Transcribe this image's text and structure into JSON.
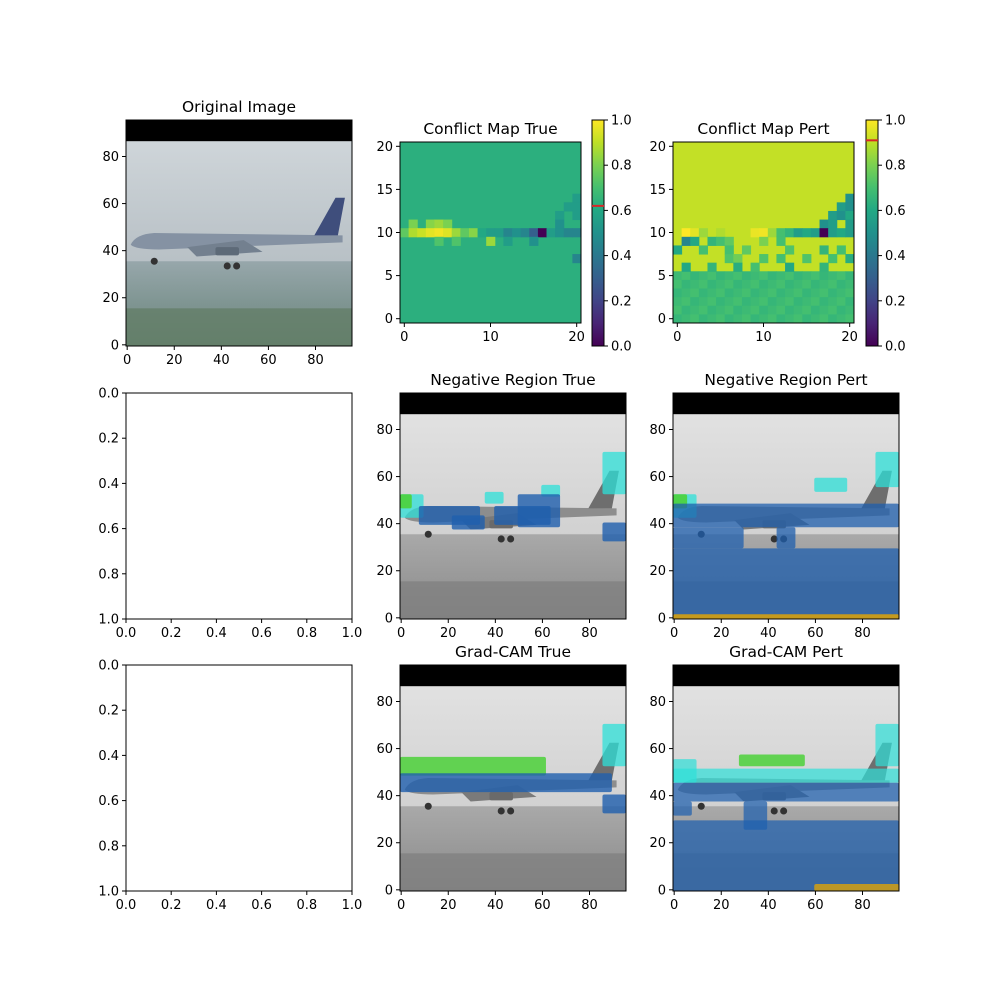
{
  "chart_data": [
    {
      "id": "original",
      "type": "image",
      "title": "Original Image",
      "xticks": [
        "0",
        "20",
        "40",
        "60",
        "80"
      ],
      "yticks": [
        "0",
        "20",
        "40",
        "60",
        "80"
      ],
      "xlim": [
        -0.5,
        95.5
      ],
      "ylim": [
        95.5,
        -0.5
      ],
      "content": "grayscale-blue photo of an airplane landing, black letterbox band at top"
    },
    {
      "id": "conflict-true",
      "type": "heatmap",
      "title": "Conflict Map True",
      "xticks": [
        "0",
        "10",
        "20"
      ],
      "yticks": [
        "0",
        "5",
        "10",
        "15",
        "20"
      ],
      "xlim": [
        -0.5,
        20.5
      ],
      "ylim": [
        20.5,
        -0.5
      ],
      "colorbar": {
        "ticks": [
          "0.0",
          "0.2",
          "0.4",
          "0.6",
          "0.8",
          "1.0"
        ],
        "range": [
          0,
          1
        ],
        "threshold": 0.62,
        "cmap": "viridis"
      },
      "background_value": 0.63,
      "cells": [
        [
          6,
          20,
          0.55
        ],
        [
          7,
          19,
          0.55
        ],
        [
          7,
          20,
          0.55
        ],
        [
          8,
          18,
          0.55
        ],
        [
          8,
          20,
          0.55
        ],
        [
          9,
          1,
          0.8
        ],
        [
          9,
          3,
          0.82
        ],
        [
          9,
          4,
          0.85
        ],
        [
          9,
          5,
          0.8
        ],
        [
          9,
          18,
          0.5
        ],
        [
          10,
          0,
          0.75
        ],
        [
          10,
          1,
          0.88
        ],
        [
          10,
          2,
          0.92
        ],
        [
          10,
          3,
          0.96
        ],
        [
          10,
          4,
          0.98
        ],
        [
          10,
          5,
          0.95
        ],
        [
          10,
          6,
          0.85
        ],
        [
          10,
          7,
          0.75
        ],
        [
          10,
          8,
          0.82
        ],
        [
          10,
          9,
          0.6
        ],
        [
          10,
          10,
          0.55
        ],
        [
          10,
          11,
          0.55
        ],
        [
          10,
          12,
          0.45
        ],
        [
          10,
          13,
          0.5
        ],
        [
          10,
          14,
          0.45
        ],
        [
          10,
          15,
          0.3
        ],
        [
          10,
          16,
          0.0
        ],
        [
          10,
          17,
          0.55
        ],
        [
          10,
          18,
          0.5
        ],
        [
          10,
          19,
          0.45
        ],
        [
          10,
          20,
          0.45
        ],
        [
          11,
          4,
          0.72
        ],
        [
          11,
          6,
          0.72
        ],
        [
          11,
          10,
          0.85
        ],
        [
          11,
          12,
          0.55
        ],
        [
          11,
          15,
          0.5
        ],
        [
          13,
          20,
          0.45
        ]
      ]
    },
    {
      "id": "conflict-pert",
      "type": "heatmap",
      "title": "Conflict Map Pert",
      "xticks": [
        "0",
        "10",
        "20"
      ],
      "yticks": [
        "0",
        "5",
        "10",
        "15",
        "20"
      ],
      "xlim": [
        -0.5,
        20.5
      ],
      "ylim": [
        20.5,
        -0.5
      ],
      "colorbar": {
        "ticks": [
          "0.0",
          "0.2",
          "0.4",
          "0.6",
          "0.8",
          "1.0"
        ],
        "range": [
          0,
          1
        ],
        "threshold": 0.91,
        "cmap": "viridis"
      },
      "background_value": 0.91,
      "lower_region": {
        "from_row": 15,
        "to_row": 20,
        "values": [
          0.62,
          0.7,
          0.78,
          0.55,
          0.85,
          0.66,
          0.74,
          0.58,
          0.82,
          0.68,
          0.9,
          0.6
        ]
      },
      "cells": [
        [
          6,
          20,
          0.5
        ],
        [
          7,
          19,
          0.55
        ],
        [
          7,
          20,
          0.5
        ],
        [
          8,
          18,
          0.55
        ],
        [
          8,
          19,
          0.5
        ],
        [
          8,
          20,
          0.6
        ],
        [
          9,
          17,
          0.5
        ],
        [
          9,
          18,
          0.55
        ],
        [
          9,
          20,
          0.55
        ],
        [
          10,
          1,
          1.0
        ],
        [
          10,
          2,
          0.96
        ],
        [
          10,
          3,
          0.85
        ],
        [
          10,
          5,
          0.88
        ],
        [
          10,
          9,
          0.97
        ],
        [
          10,
          10,
          0.98
        ],
        [
          10,
          11,
          0.85
        ],
        [
          10,
          12,
          0.7
        ],
        [
          10,
          13,
          0.65
        ],
        [
          10,
          14,
          0.55
        ],
        [
          10,
          15,
          0.6
        ],
        [
          10,
          16,
          0.55
        ],
        [
          10,
          17,
          0.0
        ],
        [
          10,
          18,
          0.55
        ],
        [
          10,
          19,
          0.6
        ],
        [
          10,
          20,
          0.55
        ],
        [
          11,
          1,
          0.45
        ],
        [
          11,
          2,
          0.6
        ],
        [
          11,
          4,
          0.65
        ],
        [
          11,
          5,
          0.7
        ],
        [
          11,
          6,
          0.75
        ],
        [
          11,
          10,
          0.8
        ],
        [
          11,
          12,
          0.7
        ],
        [
          12,
          0,
          0.6
        ],
        [
          12,
          3,
          0.7
        ],
        [
          12,
          6,
          0.7
        ],
        [
          12,
          8,
          0.75
        ],
        [
          12,
          13,
          0.72
        ],
        [
          12,
          17,
          0.65
        ],
        [
          12,
          19,
          0.7
        ],
        [
          13,
          6,
          0.72
        ],
        [
          13,
          7,
          0.78
        ],
        [
          13,
          10,
          0.72
        ],
        [
          13,
          12,
          0.7
        ],
        [
          13,
          15,
          0.72
        ],
        [
          13,
          18,
          0.7
        ],
        [
          13,
          20,
          0.62
        ],
        [
          14,
          1,
          0.6
        ],
        [
          14,
          4,
          0.65
        ],
        [
          14,
          7,
          0.62
        ],
        [
          14,
          9,
          0.7
        ],
        [
          14,
          13,
          0.6
        ],
        [
          14,
          17,
          0.65
        ]
      ]
    },
    {
      "id": "empty-1",
      "type": "empty",
      "title": "",
      "xticks": [
        "0.0",
        "0.2",
        "0.4",
        "0.6",
        "0.8",
        "1.0"
      ],
      "yticks": [
        "0.0",
        "0.2",
        "0.4",
        "0.6",
        "0.8",
        "1.0"
      ],
      "xlim": [
        0,
        1
      ],
      "ylim": [
        0,
        1
      ]
    },
    {
      "id": "neg-true",
      "type": "image",
      "title": "Negative Region True",
      "xticks": [
        "0",
        "20",
        "40",
        "60",
        "80"
      ],
      "yticks": [
        "0",
        "20",
        "40",
        "60",
        "80"
      ],
      "xlim": [
        -0.5,
        95.5
      ],
      "ylim": [
        95.5,
        -0.5
      ],
      "content": "grayscale airplane with blue overlay patches along the fuselage, green-cyan edge at left and right"
    },
    {
      "id": "neg-pert",
      "type": "image",
      "title": "Negative Region Pert",
      "xticks": [
        "0",
        "20",
        "40",
        "60",
        "80"
      ],
      "yticks": [
        "0",
        "20",
        "40",
        "60",
        "80"
      ],
      "xlim": [
        -0.5,
        95.5
      ],
      "ylim": [
        95.5,
        -0.5
      ],
      "content": "grayscale airplane with blue overlay covering fuselage and lower ground region"
    },
    {
      "id": "empty-2",
      "type": "empty",
      "title": "",
      "xticks": [
        "0.0",
        "0.2",
        "0.4",
        "0.6",
        "0.8",
        "1.0"
      ],
      "yticks": [
        "0.0",
        "0.2",
        "0.4",
        "0.6",
        "0.8",
        "1.0"
      ],
      "xlim": [
        0,
        1
      ],
      "ylim": [
        0,
        1
      ]
    },
    {
      "id": "gradcam-true",
      "type": "image",
      "title": "Grad-CAM True",
      "xticks": [
        "0",
        "20",
        "40",
        "60",
        "80"
      ],
      "yticks": [
        "0",
        "20",
        "40",
        "60",
        "80"
      ],
      "xlim": [
        -0.5,
        95.5
      ],
      "ylim": [
        95.5,
        -0.5
      ],
      "content": "grayscale airplane with green band above fuselage and blue band along it"
    },
    {
      "id": "gradcam-pert",
      "type": "image",
      "title": "Grad-CAM Pert",
      "xticks": [
        "0",
        "20",
        "40",
        "60",
        "80"
      ],
      "yticks": [
        "0",
        "20",
        "40",
        "60",
        "80"
      ],
      "xlim": [
        -0.5,
        95.5
      ],
      "ylim": [
        95.5,
        -0.5
      ],
      "content": "grayscale airplane with blue overlay on fuselage and lower half, green highlights above fuselage"
    }
  ]
}
